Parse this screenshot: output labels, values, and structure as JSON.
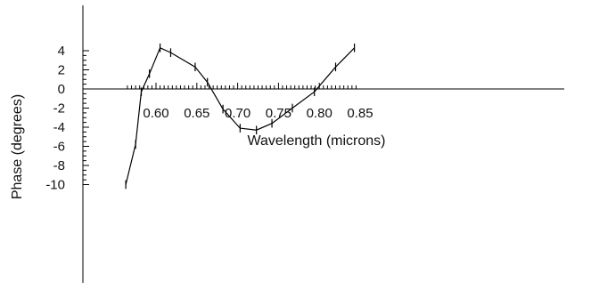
{
  "chart_data": {
    "type": "line",
    "title": "",
    "xlabel": "Wavelength (microns)",
    "ylabel": "Phase (degrees)",
    "xlim": [
      0.563,
      0.845
    ],
    "ylim": [
      -10.0,
      4.3
    ],
    "x_ticks": [
      0.6,
      0.65,
      0.7,
      0.75,
      0.8,
      0.85
    ],
    "x_tick_labels": [
      "0.60",
      "0.65",
      "0.70",
      "0.75",
      "0.80",
      "0.85"
    ],
    "y_ticks": [
      4,
      2,
      0,
      -2,
      -4,
      -6,
      -8,
      -10
    ],
    "y_tick_labels": [
      "4",
      "2",
      "0",
      "-2",
      "-4",
      "-6",
      "-8",
      "-10"
    ],
    "grid": false,
    "series": [
      {
        "x": [
          0.563,
          0.575,
          0.582,
          0.592,
          0.605,
          0.618,
          0.648,
          0.663,
          0.682,
          0.703,
          0.723,
          0.742,
          0.767,
          0.794,
          0.82,
          0.843
        ],
        "y": [
          -10.0,
          -5.8,
          -0.3,
          1.6,
          4.3,
          3.8,
          2.3,
          0.7,
          -2.1,
          -4.1,
          -4.3,
          -3.6,
          -2.0,
          -0.3,
          2.3,
          4.3
        ]
      }
    ],
    "error_bar_half_height": 0.45
  }
}
